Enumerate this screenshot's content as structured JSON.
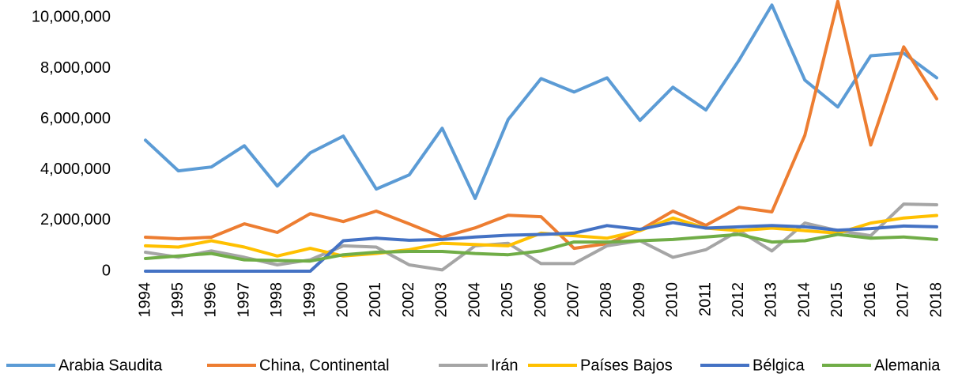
{
  "chart_data": {
    "type": "line",
    "x": [
      "1994",
      "1995",
      "1996",
      "1997",
      "1998",
      "1999",
      "2000",
      "2001",
      "2002",
      "2003",
      "2004",
      "2005",
      "2006",
      "2007",
      "2008",
      "2009",
      "2010",
      "2011",
      "2012",
      "2013",
      "2014",
      "2015",
      "2016",
      "2017",
      "2018"
    ],
    "ylim": [
      0,
      10700000
    ],
    "yticks": [
      0,
      {
        "value": 2000000,
        "label": "2,000,000"
      },
      {
        "value": 4000000,
        "label": "4,000,000"
      },
      {
        "value": 6000000,
        "label": "6,000,000"
      },
      {
        "value": 8000000,
        "label": "8,000,000"
      },
      {
        "value": 10000000,
        "label": "10,000,000"
      }
    ],
    "grid": false,
    "legend": "bottom",
    "series": [
      {
        "name": "Arabia Saudita",
        "color": "#5b9bd5",
        "values": [
          5170000,
          3960000,
          4110000,
          4950000,
          3360000,
          4670000,
          5330000,
          3240000,
          3800000,
          5640000,
          2870000,
          5980000,
          7600000,
          7070000,
          7630000,
          5950000,
          7260000,
          6360000,
          8320000,
          10500000,
          7540000,
          6480000,
          8500000,
          8600000,
          7630000
        ]
      },
      {
        "name": "China, Continental",
        "color": "#ed7d31",
        "values": [
          1340000,
          1280000,
          1340000,
          1870000,
          1530000,
          2270000,
          1960000,
          2370000,
          1870000,
          1340000,
          1710000,
          2210000,
          2150000,
          900000,
          1090000,
          1620000,
          2370000,
          1810000,
          2520000,
          2340000,
          5360000,
          10650000,
          4980000,
          8850000,
          6800000
        ]
      },
      {
        "name": "Irán",
        "color": "#a5a5a5",
        "values": [
          750000,
          550000,
          800000,
          550000,
          250000,
          450000,
          1000000,
          950000,
          250000,
          50000,
          1000000,
          1100000,
          300000,
          300000,
          1000000,
          1200000,
          550000,
          850000,
          1600000,
          800000,
          1900000,
          1600000,
          1400000,
          2650000,
          2620000
        ]
      },
      {
        "name": "Países Bajos",
        "color": "#ffc000",
        "values": [
          1000000,
          950000,
          1200000,
          950000,
          600000,
          900000,
          600000,
          700000,
          850000,
          1100000,
          1050000,
          1000000,
          1500000,
          1400000,
          1300000,
          1600000,
          2100000,
          1700000,
          1600000,
          1700000,
          1600000,
          1500000,
          1900000,
          2100000,
          2200000
        ]
      },
      {
        "name": "Bélgica",
        "color": "#4472c4",
        "values": [
          0,
          0,
          0,
          0,
          0,
          0,
          1200000,
          1300000,
          1220000,
          1250000,
          1350000,
          1420000,
          1450000,
          1500000,
          1800000,
          1650000,
          1920000,
          1700000,
          1750000,
          1800000,
          1750000,
          1620000,
          1680000,
          1780000,
          1750000
        ]
      },
      {
        "name": "Alemania",
        "color": "#70ad47",
        "values": [
          500000,
          600000,
          700000,
          450000,
          420000,
          400000,
          650000,
          750000,
          780000,
          780000,
          700000,
          650000,
          800000,
          1150000,
          1150000,
          1200000,
          1250000,
          1350000,
          1450000,
          1150000,
          1200000,
          1450000,
          1300000,
          1350000,
          1250000
        ]
      }
    ]
  }
}
